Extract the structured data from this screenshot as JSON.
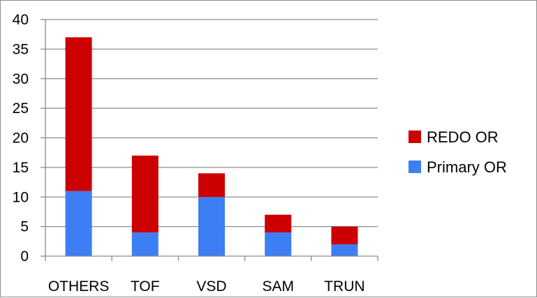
{
  "chart_data": {
    "type": "bar",
    "stacked": true,
    "categories": [
      "OTHERS",
      "TOF",
      "VSD",
      "SAM",
      "TRUN"
    ],
    "series": [
      {
        "name": "Primary OR",
        "values": [
          11,
          4,
          10,
          4,
          2
        ],
        "color": "#3d7ef5"
      },
      {
        "name": "REDO OR",
        "values": [
          26,
          13,
          4,
          3,
          3
        ],
        "color": "#cc0000"
      }
    ],
    "title": "",
    "xlabel": "",
    "ylabel": "",
    "ylim": [
      0,
      40
    ],
    "ytick_step": 5,
    "yticks": [
      "0",
      "5",
      "10",
      "15",
      "20",
      "25",
      "30",
      "35",
      "40"
    ],
    "grid": true,
    "legend": {
      "placement": "right",
      "entries": [
        "REDO OR",
        "Primary OR"
      ]
    }
  }
}
